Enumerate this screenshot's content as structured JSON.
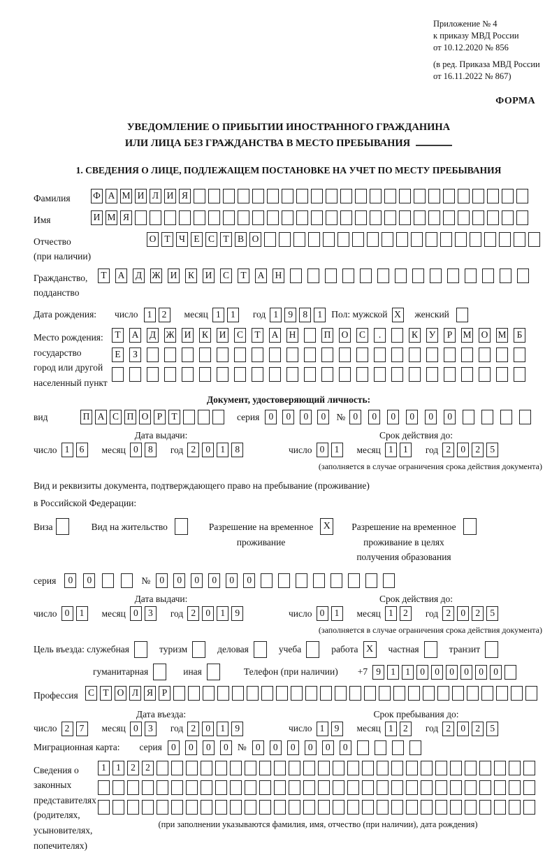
{
  "header": {
    "lines": [
      "Приложение № 4",
      "к приказу МВД России",
      "от 10.12.2020 № 856",
      "(в ред. Приказа МВД России",
      "от 16.11.2022 № 867)"
    ],
    "form_label": "ФОРМА"
  },
  "title": {
    "line1": "УВЕДОМЛЕНИЕ О ПРИБЫТИИ ИНОСТРАННОГО ГРАЖДАНИНА",
    "line2": "ИЛИ ЛИЦА БЕЗ ГРАЖДАНСТВА В МЕСТО ПРЕБЫВАНИЯ"
  },
  "section1": {
    "heading": "1. СВЕДЕНИЯ О ЛИЦЕ, ПОДЛЕЖАЩЕМ ПОСТАНОВКЕ НА УЧЕТ ПО МЕСТУ ПРЕБЫВАНИЯ"
  },
  "labels": {
    "surname": "Фамилия",
    "name": "Имя",
    "patronymic1": "Отчество",
    "patronymic2": "(при наличии)",
    "citizenship1": "Гражданство,",
    "citizenship2": "подданство",
    "birth_date": "Дата рождения:",
    "day": "число",
    "month": "месяц",
    "year": "год",
    "sex": "Пол: мужской",
    "female": "женский",
    "birth_place1": "Место рождения:",
    "birth_place2": "государство",
    "birth_place3": "город или другой",
    "birth_place4": "населенный пункт",
    "identity_doc_heading": "Документ, удостоверяющий личность:",
    "doc_type": "вид",
    "series": "серия",
    "number_sign": "№",
    "issue_date": "Дата выдачи:",
    "valid_until": "Срок действия до:",
    "validity_note": "(заполняется в случае ограничения срока действия документа)",
    "right_doc_line1": "Вид и реквизиты документа, подтверждающего право на пребывание (проживание)",
    "right_doc_line2": "в Российской Федерации:",
    "visa": "Виза",
    "residence_permit": "Вид на жительство",
    "temp_residence_lines": [
      "Разрешение на временное",
      "проживание"
    ],
    "temp_residence_edu_lines": [
      "Разрешение на временное",
      "проживание в целях",
      "получения образования"
    ],
    "entry_purpose": "Цель въезда: служебная",
    "tourism": "туризм",
    "business": "деловая",
    "study": "учеба",
    "work": "работа",
    "private": "частная",
    "transit": "транзит",
    "humanitarian": "гуманитарная",
    "other": "иная",
    "phone": "Телефон (при наличии)",
    "phone_prefix": "+7",
    "profession": "Профессия",
    "entry_date": "Дата въезда:",
    "stay_until": "Срок пребывания до:",
    "migration_card": "Миграционная карта:",
    "representatives_lines": [
      "Сведения о",
      "законных",
      "представителях",
      "(родителях,",
      "усыновителях,",
      "попечителях)"
    ],
    "representatives_note": "(при заполнении указываются фамилия, имя, отчество (при наличии), дата рождения)"
  },
  "fields": {
    "surname": {
      "len": 30,
      "chars": "ФАМИЛИЯ"
    },
    "name": {
      "len": 30,
      "chars": "ИМЯ"
    },
    "patronymic": {
      "len": 27,
      "chars": "ОТЧЕСТВО"
    },
    "citizenship": {
      "len": 25,
      "chars": "ТАДЖИКИСТАН"
    },
    "birth_day": {
      "len": 2,
      "chars": "12"
    },
    "birth_month": {
      "len": 2,
      "chars": "11"
    },
    "birth_year": {
      "len": 4,
      "chars": "1981"
    },
    "sex_male": {
      "len": 1,
      "chars": "X"
    },
    "sex_female": {
      "len": 1,
      "chars": ""
    },
    "birth_place_row1": {
      "len": 24,
      "chars": "ТАДЖИКИСТАН ПОС. КУРМОМБ"
    },
    "birth_place_row2": {
      "len": 24,
      "chars": "ЕЗ"
    },
    "birth_place_row3": {
      "len": 24,
      "chars": ""
    },
    "doc_type": {
      "len": 10,
      "chars": "ПАСПОРТ"
    },
    "doc_series": {
      "len": 4,
      "chars": "0000"
    },
    "doc_number": {
      "len": 10,
      "chars": "000000"
    },
    "doc_issue_day": {
      "len": 2,
      "chars": "16"
    },
    "doc_issue_month": {
      "len": 2,
      "chars": "08"
    },
    "doc_issue_year": {
      "len": 4,
      "chars": "2018"
    },
    "doc_valid_day": {
      "len": 2,
      "chars": "01"
    },
    "doc_valid_month": {
      "len": 2,
      "chars": "11"
    },
    "doc_valid_year": {
      "len": 4,
      "chars": "2025"
    },
    "cb_visa": {
      "len": 1,
      "chars": ""
    },
    "cb_residence_permit": {
      "len": 1,
      "chars": ""
    },
    "cb_temp_residence": {
      "len": 1,
      "chars": "X"
    },
    "cb_temp_residence_edu": {
      "len": 1,
      "chars": ""
    },
    "permit_series": {
      "len": 4,
      "chars": "00"
    },
    "permit_number": {
      "len": 14,
      "chars": "000000"
    },
    "permit_issue_day": {
      "len": 2,
      "chars": "01"
    },
    "permit_issue_month": {
      "len": 2,
      "chars": "03"
    },
    "permit_issue_year": {
      "len": 4,
      "chars": "2019"
    },
    "permit_valid_day": {
      "len": 2,
      "chars": "01"
    },
    "permit_valid_month": {
      "len": 2,
      "chars": "12"
    },
    "permit_valid_year": {
      "len": 4,
      "chars": "2025"
    },
    "cb_official": {
      "len": 1,
      "chars": ""
    },
    "cb_tourism": {
      "len": 1,
      "chars": ""
    },
    "cb_business": {
      "len": 1,
      "chars": ""
    },
    "cb_study": {
      "len": 1,
      "chars": ""
    },
    "cb_work": {
      "len": 1,
      "chars": "X"
    },
    "cb_private": {
      "len": 1,
      "chars": ""
    },
    "cb_transit": {
      "len": 1,
      "chars": ""
    },
    "cb_humanitarian": {
      "len": 1,
      "chars": ""
    },
    "cb_other": {
      "len": 1,
      "chars": ""
    },
    "phone_number": {
      "len": 10,
      "chars": "911000000"
    },
    "profession": {
      "len": 31,
      "chars": "СТОЛЯР"
    },
    "entry_day": {
      "len": 2,
      "chars": "27"
    },
    "entry_month": {
      "len": 2,
      "chars": "03"
    },
    "entry_year": {
      "len": 4,
      "chars": "2019"
    },
    "stay_day": {
      "len": 2,
      "chars": "19"
    },
    "stay_month": {
      "len": 2,
      "chars": "12"
    },
    "stay_year": {
      "len": 4,
      "chars": "2025"
    },
    "mc_series": {
      "len": 4,
      "chars": "0000"
    },
    "mc_number": {
      "len": 10,
      "chars": "000000"
    },
    "rep_row1": {
      "len": 30,
      "chars": "1122"
    },
    "rep_row2": {
      "len": 30,
      "chars": ""
    },
    "rep_row3": {
      "len": 30,
      "chars": ""
    }
  }
}
